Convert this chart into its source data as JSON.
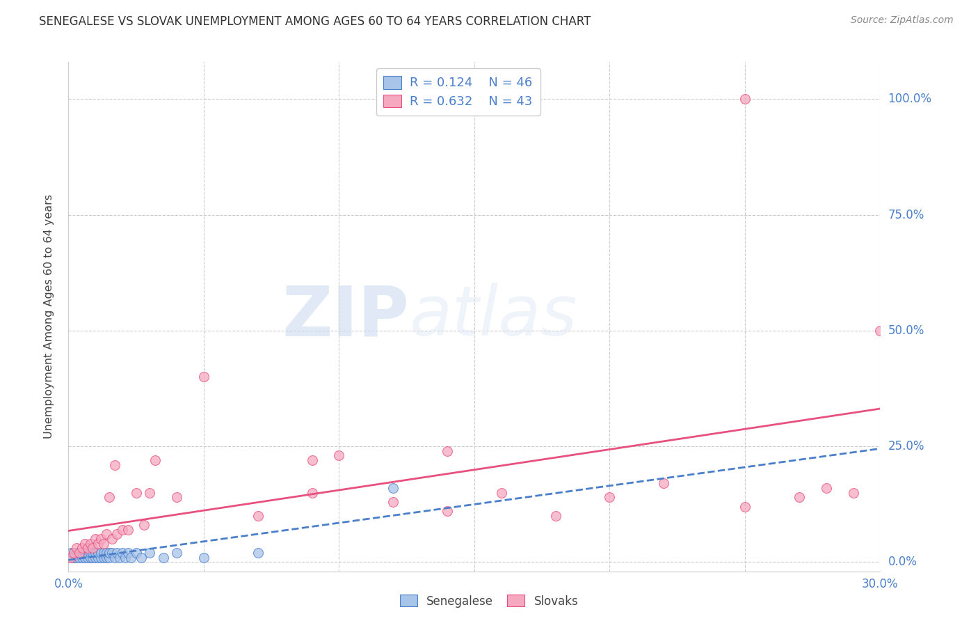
{
  "title": "SENEGALESE VS SLOVAK UNEMPLOYMENT AMONG AGES 60 TO 64 YEARS CORRELATION CHART",
  "source": "Source: ZipAtlas.com",
  "ylabel": "Unemployment Among Ages 60 to 64 years",
  "xlim": [
    0.0,
    0.3
  ],
  "ylim": [
    -0.02,
    1.08
  ],
  "ytick_vals": [
    0.0,
    0.25,
    0.5,
    0.75,
    1.0
  ],
  "ytick_labels": [
    "0.0%",
    "25.0%",
    "50.0%",
    "75.0%",
    "100.0%"
  ],
  "xtick_vals": [
    0.0,
    0.3
  ],
  "xtick_labels": [
    "0.0%",
    "30.0%"
  ],
  "senegalese_R": "0.124",
  "senegalese_N": "46",
  "slovak_R": "0.632",
  "slovak_N": "43",
  "blue_fill": "#A8C4E8",
  "pink_fill": "#F5A8C0",
  "blue_edge": "#4A7FCC",
  "pink_edge": "#E85080",
  "blue_line": "#4A7FCC",
  "pink_line": "#E85080",
  "legend_label_1": "Senegalese",
  "legend_label_2": "Slovaks",
  "watermark_zip": "ZIP",
  "watermark_atlas": "atlas",
  "background_color": "#ffffff",
  "senegalese_x": [
    0.001,
    0.001,
    0.002,
    0.002,
    0.003,
    0.003,
    0.004,
    0.004,
    0.005,
    0.005,
    0.006,
    0.006,
    0.007,
    0.007,
    0.008,
    0.008,
    0.009,
    0.009,
    0.01,
    0.01,
    0.011,
    0.011,
    0.012,
    0.012,
    0.013,
    0.013,
    0.014,
    0.014,
    0.015,
    0.015,
    0.016,
    0.017,
    0.018,
    0.019,
    0.02,
    0.021,
    0.022,
    0.023,
    0.025,
    0.027,
    0.03,
    0.035,
    0.04,
    0.05,
    0.07,
    0.12
  ],
  "senegalese_y": [
    0.01,
    0.02,
    0.01,
    0.02,
    0.01,
    0.02,
    0.01,
    0.02,
    0.01,
    0.02,
    0.01,
    0.02,
    0.01,
    0.02,
    0.01,
    0.02,
    0.01,
    0.02,
    0.01,
    0.02,
    0.01,
    0.02,
    0.01,
    0.02,
    0.01,
    0.02,
    0.01,
    0.02,
    0.01,
    0.02,
    0.02,
    0.01,
    0.02,
    0.01,
    0.02,
    0.01,
    0.02,
    0.01,
    0.02,
    0.01,
    0.02,
    0.01,
    0.02,
    0.01,
    0.02,
    0.16
  ],
  "slovak_x": [
    0.001,
    0.002,
    0.003,
    0.004,
    0.005,
    0.006,
    0.007,
    0.008,
    0.009,
    0.01,
    0.011,
    0.012,
    0.013,
    0.014,
    0.015,
    0.016,
    0.017,
    0.018,
    0.02,
    0.022,
    0.025,
    0.028,
    0.03,
    0.032,
    0.04,
    0.05,
    0.07,
    0.09,
    0.1,
    0.12,
    0.14,
    0.16,
    0.18,
    0.2,
    0.22,
    0.25,
    0.27,
    0.28,
    0.29,
    0.3,
    0.14,
    0.09,
    0.25
  ],
  "slovak_y": [
    0.01,
    0.02,
    0.03,
    0.02,
    0.03,
    0.04,
    0.03,
    0.04,
    0.03,
    0.05,
    0.04,
    0.05,
    0.04,
    0.06,
    0.14,
    0.05,
    0.21,
    0.06,
    0.07,
    0.07,
    0.15,
    0.08,
    0.15,
    0.22,
    0.14,
    0.4,
    0.1,
    0.22,
    0.23,
    0.13,
    0.11,
    0.15,
    0.1,
    0.14,
    0.17,
    0.12,
    0.14,
    0.16,
    0.15,
    0.5,
    0.24,
    0.15,
    1.0
  ]
}
